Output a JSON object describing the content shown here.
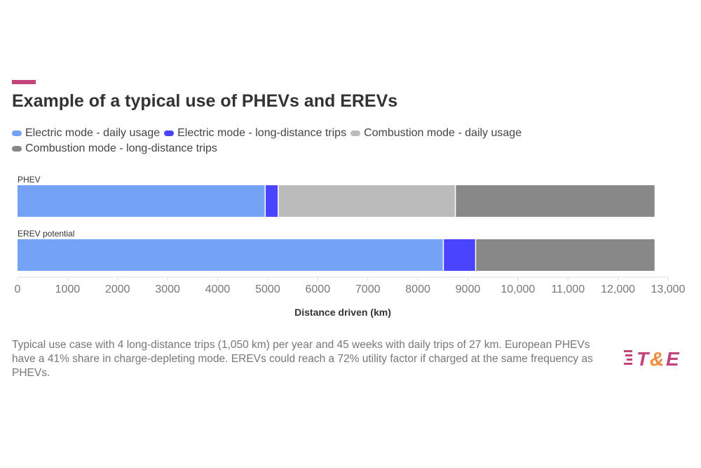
{
  "title": "Example of a typical use of PHEVs and EREVs",
  "accent_color": "#c2447a",
  "chart_data": {
    "type": "bar",
    "orientation": "horizontal",
    "stacked": true,
    "categories": [
      "PHEV",
      "EREV potential"
    ],
    "series": [
      {
        "name": "Electric mode - daily usage",
        "color": "#74a3f5",
        "values": [
          4960,
          8520
        ]
      },
      {
        "name": "Electric mode - long-distance trips",
        "color": "#4b44ff",
        "values": [
          260,
          645
        ]
      },
      {
        "name": "Combustion mode - daily usage",
        "color": "#bbbbbb",
        "values": [
          3540,
          0
        ]
      },
      {
        "name": "Combustion mode - long-distance trips",
        "color": "#888888",
        "values": [
          3970,
          3565
        ]
      }
    ],
    "xlabel": "Distance driven (km)",
    "xlim": [
      0,
      13000
    ],
    "xticks": [
      "0",
      "1000",
      "2000",
      "3000",
      "4000",
      "5000",
      "6000",
      "7000",
      "8000",
      "9000",
      "10,000",
      "11,000",
      "12,000",
      "13,000"
    ],
    "legend_position": "top",
    "grid": false
  },
  "footnote": "Typical use case with 4 long-distance trips (1,050 km) per year and 45 weeks with daily trips of 27 km. European PHEVs have a 41% share in charge-depleting mode. EREVs could reach a 72% utility factor if charged at the same frequency as PHEVs.",
  "logo": {
    "text": "T&E",
    "colors": [
      "#c2447a",
      "#f08a3c"
    ]
  }
}
